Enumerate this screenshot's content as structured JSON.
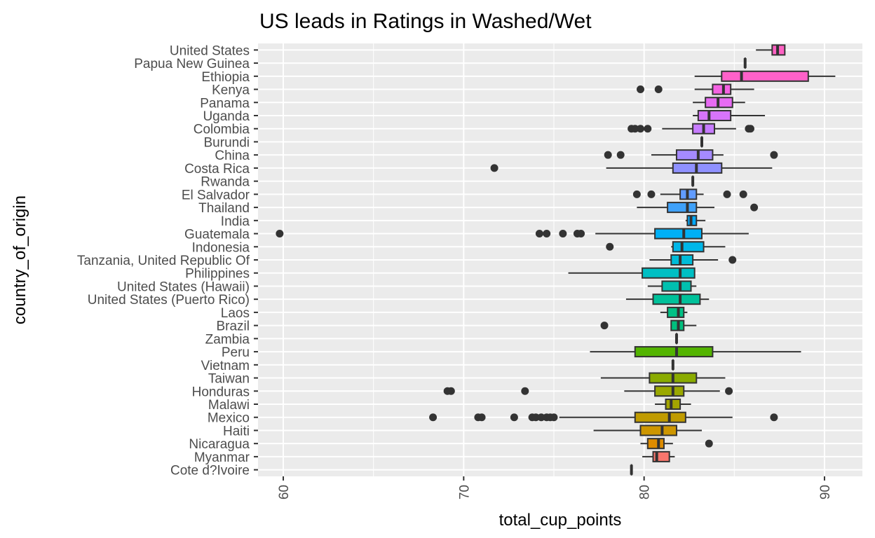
{
  "chart_data": {
    "type": "boxplot",
    "orientation": "horizontal",
    "title": "US leads in Ratings in Washed/Wet",
    "xlabel": "total_cup_points",
    "ylabel": "country_of_origin",
    "xlim": [
      58.6,
      92.1
    ],
    "xticks": [
      60,
      70,
      80,
      90
    ],
    "grid": true,
    "legend": "none",
    "categories": [
      {
        "name": "United States",
        "color": "#FF61C3",
        "min": 86.2,
        "q1": 87.1,
        "median": 87.4,
        "q3": 87.8,
        "max": 87.8,
        "outliers": []
      },
      {
        "name": "Papua New Guinea",
        "color": "#FF62BC",
        "min": 85.6,
        "q1": 85.6,
        "median": 85.6,
        "q3": 85.6,
        "max": 85.6,
        "outliers": []
      },
      {
        "name": "Ethiopia",
        "color": "#FF61C9",
        "min": 82.8,
        "q1": 84.3,
        "median": 85.4,
        "q3": 89.1,
        "max": 90.6,
        "outliers": []
      },
      {
        "name": "Kenya",
        "color": "#F563E3",
        "min": 82.8,
        "q1": 83.8,
        "median": 84.4,
        "q3": 84.8,
        "max": 86.1,
        "outliers": [
          79.8,
          80.8
        ]
      },
      {
        "name": "Panama",
        "color": "#E76BF3",
        "min": 82.7,
        "q1": 83.4,
        "median": 84.1,
        "q3": 84.9,
        "max": 85.6,
        "outliers": []
      },
      {
        "name": "Uganda",
        "color": "#D774FA",
        "min": 82.7,
        "q1": 83.0,
        "median": 83.6,
        "q3": 84.8,
        "max": 86.7,
        "outliers": []
      },
      {
        "name": "Colombia",
        "color": "#C77CFF",
        "min": 81.0,
        "q1": 82.7,
        "median": 83.3,
        "q3": 83.9,
        "max": 85.1,
        "outliers": [
          79.3,
          79.5,
          79.8,
          80.2,
          85.8,
          85.9
        ]
      },
      {
        "name": "Burundi",
        "color": "#B983FF",
        "min": 83.2,
        "q1": 83.2,
        "median": 83.2,
        "q3": 83.2,
        "max": 83.2,
        "outliers": []
      },
      {
        "name": "China",
        "color": "#A58AFF",
        "min": 80.4,
        "q1": 81.8,
        "median": 83.0,
        "q3": 83.8,
        "max": 84.4,
        "outliers": [
          78.0,
          78.7,
          87.2
        ]
      },
      {
        "name": "Costa Rica",
        "color": "#8F91FF",
        "min": 77.9,
        "q1": 81.6,
        "median": 82.9,
        "q3": 84.3,
        "max": 87.1,
        "outliers": [
          71.7
        ]
      },
      {
        "name": "Rwanda",
        "color": "#7997FF",
        "min": 82.7,
        "q1": 82.7,
        "median": 82.7,
        "q3": 82.7,
        "max": 82.7,
        "outliers": []
      },
      {
        "name": "El Salvador",
        "color": "#619CFF",
        "min": 80.9,
        "q1": 82.0,
        "median": 82.4,
        "q3": 82.9,
        "max": 83.3,
        "outliers": [
          79.6,
          80.4,
          84.6,
          85.5
        ]
      },
      {
        "name": "Thailand",
        "color": "#3FA1F9",
        "min": 79.6,
        "q1": 81.3,
        "median": 82.4,
        "q3": 82.9,
        "max": 83.9,
        "outliers": [
          86.1
        ]
      },
      {
        "name": "India",
        "color": "#00A9FF",
        "min": 82.3,
        "q1": 82.4,
        "median": 82.6,
        "q3": 82.9,
        "max": 83.4,
        "outliers": []
      },
      {
        "name": "Guatemala",
        "color": "#00B0F6",
        "min": 77.3,
        "q1": 80.6,
        "median": 82.2,
        "q3": 83.2,
        "max": 85.8,
        "outliers": [
          59.8,
          74.2,
          74.6,
          75.5,
          76.3,
          76.5
        ]
      },
      {
        "name": "Indonesia",
        "color": "#00B7E9",
        "min": 81.5,
        "q1": 81.6,
        "median": 82.1,
        "q3": 83.3,
        "max": 84.5,
        "outliers": [
          78.1
        ]
      },
      {
        "name": "Tanzania, United Republic Of",
        "color": "#00BCD8",
        "min": 80.3,
        "q1": 81.5,
        "median": 82.0,
        "q3": 82.7,
        "max": 84.1,
        "outliers": [
          84.9
        ]
      },
      {
        "name": "Philippines",
        "color": "#00BFC4",
        "min": 75.8,
        "q1": 79.9,
        "median": 82.0,
        "q3": 82.8,
        "max": 82.8,
        "outliers": []
      },
      {
        "name": "United States (Hawaii)",
        "color": "#00C0AF",
        "min": 80.2,
        "q1": 81.0,
        "median": 82.0,
        "q3": 82.6,
        "max": 82.9,
        "outliers": []
      },
      {
        "name": "United States (Puerto Rico)",
        "color": "#00C19A",
        "min": 79.0,
        "q1": 80.5,
        "median": 82.0,
        "q3": 83.1,
        "max": 83.6,
        "outliers": []
      },
      {
        "name": "Laos",
        "color": "#00C185",
        "min": 80.9,
        "q1": 81.3,
        "median": 81.9,
        "q3": 82.2,
        "max": 82.4,
        "outliers": []
      },
      {
        "name": "Brazil",
        "color": "#00BF7D",
        "min": 81.5,
        "q1": 81.5,
        "median": 81.9,
        "q3": 82.2,
        "max": 82.9,
        "outliers": [
          77.8
        ]
      },
      {
        "name": "Zambia",
        "color": "#00BA38",
        "min": 81.8,
        "q1": 81.8,
        "median": 81.8,
        "q3": 81.8,
        "max": 81.8,
        "outliers": []
      },
      {
        "name": "Peru",
        "color": "#53B400",
        "min": 77.0,
        "q1": 79.5,
        "median": 81.8,
        "q3": 83.8,
        "max": 88.7,
        "outliers": []
      },
      {
        "name": "Vietnam",
        "color": "#7CAE00",
        "min": 81.6,
        "q1": 81.6,
        "median": 81.6,
        "q3": 81.6,
        "max": 81.6,
        "outliers": []
      },
      {
        "name": "Taiwan",
        "color": "#8AAB00",
        "min": 77.6,
        "q1": 80.3,
        "median": 81.6,
        "q3": 82.9,
        "max": 84.5,
        "outliers": []
      },
      {
        "name": "Honduras",
        "color": "#9AA800",
        "min": 78.9,
        "q1": 80.6,
        "median": 81.6,
        "q3": 82.2,
        "max": 84.2,
        "outliers": [
          69.1,
          69.3,
          73.4,
          84.7
        ]
      },
      {
        "name": "Malawi",
        "color": "#A3A500",
        "min": 80.6,
        "q1": 81.2,
        "median": 81.5,
        "q3": 82.0,
        "max": 82.6,
        "outliers": []
      },
      {
        "name": "Mexico",
        "color": "#C09B00",
        "min": 75.3,
        "q1": 79.5,
        "median": 81.4,
        "q3": 82.3,
        "max": 84.9,
        "outliers": [
          68.3,
          70.8,
          71.0,
          72.8,
          73.8,
          74.0,
          74.3,
          74.6,
          74.8,
          75.0,
          87.2
        ]
      },
      {
        "name": "Haiti",
        "color": "#CD9600",
        "min": 77.2,
        "q1": 79.8,
        "median": 81.0,
        "q3": 81.8,
        "max": 83.2,
        "outliers": []
      },
      {
        "name": "Nicaragua",
        "color": "#DE8C00",
        "min": 79.8,
        "q1": 80.2,
        "median": 80.8,
        "q3": 81.1,
        "max": 81.6,
        "outliers": [
          83.6
        ]
      },
      {
        "name": "Myanmar",
        "color": "#F8766D",
        "min": 79.9,
        "q1": 80.5,
        "median": 80.7,
        "q3": 81.4,
        "max": 81.7,
        "outliers": []
      },
      {
        "name": "Cote d?Ivoire",
        "color": "#F8766D",
        "min": 79.3,
        "q1": 79.3,
        "median": 79.3,
        "q3": 79.3,
        "max": 79.3,
        "outliers": []
      }
    ]
  }
}
